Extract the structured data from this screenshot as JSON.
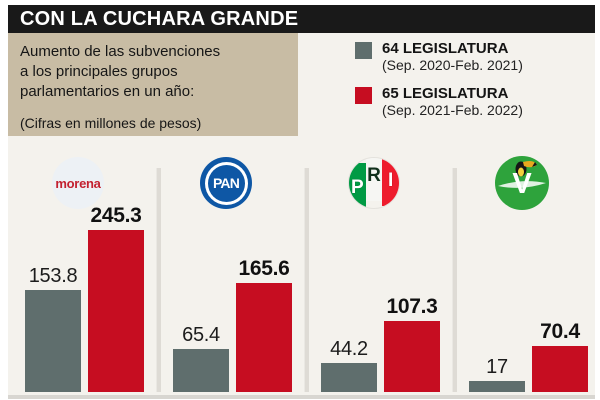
{
  "header": {
    "title": "CON LA CUCHARA GRANDE",
    "subtitle_lines": [
      "Aumento de las subvenciones",
      "a los principales grupos",
      "parlamentarios en un año:"
    ],
    "units_note": "(Cifras en millones de pesos)"
  },
  "legend": {
    "items": [
      {
        "label": "64 LEGISLATURA",
        "period": "(Sep. 2020-Feb. 2021)",
        "color": "#5f6e6d"
      },
      {
        "label": "65 LEGISLATURA",
        "period": "(Sep. 2021-Feb. 2022)",
        "color": "#c60d21"
      }
    ]
  },
  "chart_data": {
    "type": "bar",
    "title": "CON LA CUCHARA GRANDE",
    "subtitle": "Aumento de las subvenciones a los principales grupos parlamentarios en un año (cifras en millones de pesos)",
    "categories": [
      "morena",
      "PAN",
      "PRI",
      "Partido Verde"
    ],
    "series": [
      {
        "name": "64 LEGISLATURA (Sep. 2020-Feb. 2021)",
        "color": "#5f6e6d",
        "values": [
          153.8,
          65.4,
          44.2,
          17
        ]
      },
      {
        "name": "65 LEGISLATURA (Sep. 2021-Feb. 2022)",
        "color": "#c60d21",
        "values": [
          245.3,
          165.6,
          107.3,
          70.4
        ]
      }
    ],
    "ylim": [
      0,
      250
    ],
    "grid": false,
    "axes_shown": false,
    "value_labels": true,
    "legend_position": "top-right"
  },
  "groups": [
    {
      "party": "morena",
      "old_label": "153.8",
      "new_label": "245.3"
    },
    {
      "party": "PAN",
      "old_label": "65.4",
      "new_label": "165.6"
    },
    {
      "party": "PRI",
      "old_label": "44.2",
      "new_label": "107.3"
    },
    {
      "party": "Partido Verde",
      "old_label": "17",
      "new_label": "70.4"
    }
  ],
  "logos": {
    "morena_text": "morena",
    "pan_text": "PAN",
    "pri_letters": [
      "P",
      "R",
      "I"
    ],
    "verde_letter": "V"
  },
  "colors": {
    "bar_64": "#5f6e6d",
    "bar_65": "#c60d21",
    "title_bar_bg": "#191919",
    "desc_box_bg": "#c8bca4",
    "panel_bg": "#f4f2ed",
    "pan_blue": "#0e57a5",
    "pri_green": "#009a44",
    "pri_red": "#ee1c2d",
    "verde_green": "#2ea33c",
    "morena_red": "#c32130"
  }
}
